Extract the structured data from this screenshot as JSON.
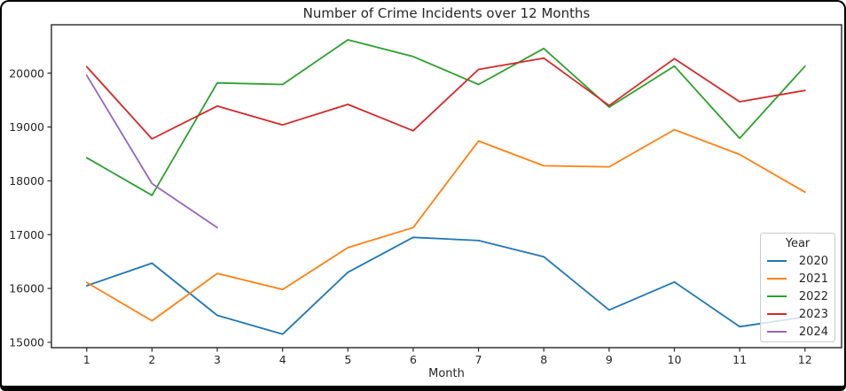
{
  "chart_data": {
    "type": "line",
    "title": "Number of Crime Incidents over 12 Months",
    "xlabel": "Month",
    "ylabel": "",
    "legend_title": "Year",
    "legend_position": "lower right",
    "grid": false,
    "x": [
      1,
      2,
      3,
      4,
      5,
      6,
      7,
      8,
      9,
      10,
      11,
      12
    ],
    "yticks": [
      15000,
      16000,
      17000,
      18000,
      19000,
      20000
    ],
    "xlim": [
      0.46,
      12.56
    ],
    "ylim": [
      14900,
      20900
    ],
    "axis_color": "#262626",
    "text_color": "#262626",
    "series": [
      {
        "name": "2020",
        "color": "#1f77b4",
        "values": [
          16050,
          16470,
          15500,
          15150,
          16300,
          16950,
          16890,
          16590,
          15600,
          16120,
          15290,
          15470
        ]
      },
      {
        "name": "2021",
        "color": "#ff7f0e",
        "values": [
          16110,
          15400,
          16280,
          15980,
          16760,
          17130,
          18740,
          18280,
          18260,
          18950,
          18490,
          17790
        ]
      },
      {
        "name": "2022",
        "color": "#2ca02c",
        "values": [
          18430,
          17730,
          19820,
          19790,
          20620,
          20310,
          19790,
          20460,
          19370,
          20130,
          18790,
          20130
        ]
      },
      {
        "name": "2023",
        "color": "#d62728",
        "values": [
          20120,
          18780,
          19390,
          19040,
          19420,
          18930,
          20070,
          20280,
          19400,
          20270,
          19470,
          19680
        ]
      },
      {
        "name": "2024",
        "color": "#9467bd",
        "values": [
          19960,
          17950,
          17130,
          null,
          null,
          null,
          null,
          null,
          null,
          null,
          null,
          null
        ]
      }
    ]
  }
}
